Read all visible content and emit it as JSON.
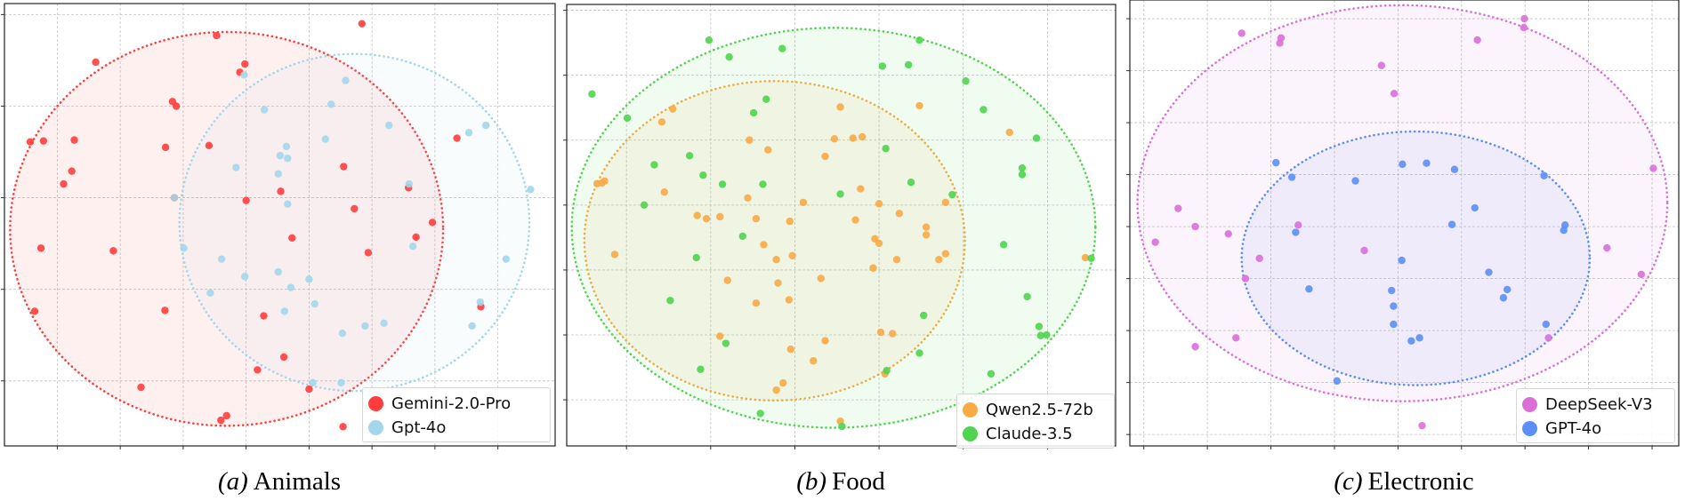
{
  "chart_data": [
    {
      "type": "scatter",
      "caption_label": "(a)",
      "caption_title": "Animals",
      "xlim": [
        -0.84,
        7.91
      ],
      "ylim": [
        -0.71,
        4.12
      ],
      "xticks": [
        0,
        1,
        2,
        3,
        4,
        5,
        6,
        7
      ],
      "yticks": [
        0,
        1,
        2,
        3,
        4
      ],
      "tick_labels_shown": false,
      "grid": true,
      "legend_position": "lower-right",
      "series": [
        {
          "name": "Gemini-2.0-Pro",
          "color": "#ff3d3d",
          "ellipse": {
            "cx": 2.69,
            "cy": 1.66,
            "rx": 3.44,
            "ry": 2.15
          },
          "points": [
            [
              4.84,
              3.9
            ],
            [
              2.53,
              3.77
            ],
            [
              0.61,
              3.48
            ],
            [
              2.98,
              3.46
            ],
            [
              2.9,
              3.37
            ],
            [
              1.83,
              3.05
            ],
            [
              1.89,
              3.0
            ],
            [
              -0.43,
              2.61
            ],
            [
              -0.22,
              2.62
            ],
            [
              0.27,
              2.63
            ],
            [
              1.72,
              2.55
            ],
            [
              2.41,
              2.57
            ],
            [
              6.35,
              2.65
            ],
            [
              0.23,
              2.29
            ],
            [
              0.1,
              2.15
            ],
            [
              4.55,
              2.34
            ],
            [
              5.58,
              2.11
            ],
            [
              3.55,
              2.07
            ],
            [
              3.0,
              1.97
            ],
            [
              4.72,
              1.88
            ],
            [
              5.96,
              1.73
            ],
            [
              3.73,
              1.56
            ],
            [
              5.7,
              1.57
            ],
            [
              -0.26,
              1.45
            ],
            [
              0.89,
              1.42
            ],
            [
              4.94,
              1.4
            ],
            [
              -0.36,
              0.76
            ],
            [
              1.71,
              0.77
            ],
            [
              3.28,
              0.71
            ],
            [
              6.73,
              0.81
            ],
            [
              3.6,
              0.26
            ],
            [
              3.18,
              0.12
            ],
            [
              1.33,
              -0.07
            ],
            [
              4.0,
              -0.09
            ],
            [
              2.69,
              -0.38
            ],
            [
              2.6,
              -0.43
            ],
            [
              4.54,
              -0.5
            ],
            [
              1.86,
              2.0
            ]
          ]
        },
        {
          "name": "Gpt-4o",
          "color": "#a3d6ea",
          "ellipse": {
            "cx": 4.72,
            "cy": 1.73,
            "rx": 2.78,
            "ry": 1.84
          },
          "points": [
            [
              2.97,
              3.34
            ],
            [
              4.58,
              3.28
            ],
            [
              4.35,
              3.02
            ],
            [
              3.29,
              2.96
            ],
            [
              5.27,
              2.79
            ],
            [
              6.54,
              2.71
            ],
            [
              6.81,
              2.79
            ],
            [
              4.26,
              2.64
            ],
            [
              3.64,
              2.56
            ],
            [
              3.54,
              2.46
            ],
            [
              3.66,
              2.43
            ],
            [
              2.84,
              2.33
            ],
            [
              3.51,
              2.26
            ],
            [
              5.59,
              2.15
            ],
            [
              7.52,
              2.09
            ],
            [
              3.66,
              1.93
            ],
            [
              2.01,
              1.45
            ],
            [
              5.65,
              1.47
            ],
            [
              2.61,
              1.33
            ],
            [
              7.13,
              1.33
            ],
            [
              2.98,
              1.14
            ],
            [
              3.51,
              1.19
            ],
            [
              4.0,
              1.11
            ],
            [
              3.71,
              1.02
            ],
            [
              2.43,
              0.96
            ],
            [
              4.09,
              0.84
            ],
            [
              3.61,
              0.76
            ],
            [
              6.72,
              0.86
            ],
            [
              6.59,
              0.6
            ],
            [
              4.89,
              0.6
            ],
            [
              5.19,
              0.63
            ],
            [
              4.53,
              0.52
            ],
            [
              4.06,
              -0.02
            ],
            [
              4.51,
              -0.02
            ],
            [
              1.86,
              2.0
            ]
          ]
        }
      ]
    },
    {
      "type": "scatter",
      "caption_label": "(b)",
      "caption_title": "Food",
      "xlim": [
        -0.71,
        5.81
      ],
      "ylim": [
        -0.71,
        6.09
      ],
      "xticks": [
        0,
        1,
        2,
        3,
        4,
        5
      ],
      "yticks": [
        0,
        1,
        2,
        3,
        4,
        5,
        6
      ],
      "tick_labels_shown": false,
      "grid": true,
      "legend_position": "lower-right",
      "series": [
        {
          "name": "Qwen2.5-72b",
          "color": "#f8aa45",
          "ellipse": {
            "cx": 1.76,
            "cy": 2.45,
            "rx": 2.26,
            "ry": 2.46
          },
          "points": [
            [
              2.54,
              4.51
            ],
            [
              3.48,
              4.53
            ],
            [
              0.55,
              4.48
            ],
            [
              0.42,
              4.28
            ],
            [
              4.55,
              4.12
            ],
            [
              1.46,
              4.0
            ],
            [
              2.47,
              4.02
            ],
            [
              2.69,
              4.03
            ],
            [
              2.8,
              4.05
            ],
            [
              1.68,
              3.85
            ],
            [
              2.36,
              3.75
            ],
            [
              -0.35,
              3.33
            ],
            [
              -0.29,
              3.34
            ],
            [
              -0.26,
              3.37
            ],
            [
              0.45,
              3.2
            ],
            [
              1.44,
              3.11
            ],
            [
              2.78,
              3.25
            ],
            [
              2.1,
              3.04
            ],
            [
              3.0,
              3.02
            ],
            [
              3.79,
              3.04
            ],
            [
              0.84,
              2.84
            ],
            [
              0.95,
              2.79
            ],
            [
              1.11,
              2.82
            ],
            [
              1.54,
              2.79
            ],
            [
              1.94,
              2.75
            ],
            [
              2.72,
              2.77
            ],
            [
              3.24,
              2.87
            ],
            [
              3.56,
              2.66
            ],
            [
              3.56,
              2.54
            ],
            [
              2.95,
              2.48
            ],
            [
              3.0,
              2.41
            ],
            [
              1.63,
              2.39
            ],
            [
              -0.14,
              2.24
            ],
            [
              1.78,
              2.16
            ],
            [
              1.97,
              2.22
            ],
            [
              3.21,
              2.16
            ],
            [
              3.71,
              2.16
            ],
            [
              3.79,
              2.25
            ],
            [
              2.93,
              2.03
            ],
            [
              5.45,
              2.19
            ],
            [
              1.2,
              1.84
            ],
            [
              1.8,
              1.8
            ],
            [
              2.31,
              1.87
            ],
            [
              1.54,
              1.49
            ],
            [
              1.93,
              1.54
            ],
            [
              1.11,
              0.98
            ],
            [
              3.02,
              1.04
            ],
            [
              3.16,
              1.02
            ],
            [
              2.36,
              0.91
            ],
            [
              1.95,
              0.78
            ],
            [
              2.22,
              0.6
            ],
            [
              3.07,
              0.4
            ],
            [
              1.86,
              0.26
            ],
            [
              1.78,
              0.15
            ],
            [
              2.54,
              -0.33
            ]
          ]
        },
        {
          "name": "Claude-3.5",
          "color": "#4ed44e",
          "ellipse": {
            "cx": 2.46,
            "cy": 2.65,
            "rx": 3.11,
            "ry": 3.08
          },
          "points": [
            [
              0.98,
              5.54
            ],
            [
              1.85,
              5.41
            ],
            [
              1.22,
              5.28
            ],
            [
              3.48,
              5.54
            ],
            [
              3.04,
              5.14
            ],
            [
              3.35,
              5.16
            ],
            [
              -0.41,
              4.71
            ],
            [
              4.03,
              4.91
            ],
            [
              1.66,
              4.63
            ],
            [
              0.01,
              4.34
            ],
            [
              1.51,
              4.42
            ],
            [
              4.24,
              4.47
            ],
            [
              4.87,
              4.03
            ],
            [
              3.08,
              3.87
            ],
            [
              0.75,
              3.76
            ],
            [
              0.33,
              3.62
            ],
            [
              0.91,
              3.46
            ],
            [
              1.14,
              3.32
            ],
            [
              1.62,
              3.32
            ],
            [
              4.7,
              3.57
            ],
            [
              4.7,
              3.47
            ],
            [
              3.38,
              3.35
            ],
            [
              2.54,
              3.17
            ],
            [
              3.87,
              3.16
            ],
            [
              0.21,
              3.0
            ],
            [
              1.38,
              2.52
            ],
            [
              4.48,
              2.39
            ],
            [
              0.83,
              2.19
            ],
            [
              5.52,
              2.18
            ],
            [
              0.52,
              1.53
            ],
            [
              4.76,
              1.59
            ],
            [
              3.53,
              1.3
            ],
            [
              4.9,
              1.13
            ],
            [
              4.92,
              0.99
            ],
            [
              4.99,
              1.0
            ],
            [
              1.18,
              0.87
            ],
            [
              3.48,
              0.72
            ],
            [
              0.88,
              0.47
            ],
            [
              3.09,
              0.45
            ],
            [
              4.33,
              0.4
            ],
            [
              1.59,
              -0.21
            ],
            [
              2.56,
              -0.41
            ]
          ]
        }
      ]
    },
    {
      "type": "scatter",
      "caption_label": "(c)",
      "caption_title": "Electronic",
      "xlim": [
        -0.22,
        8.42
      ],
      "ylim": [
        -0.22,
        8.36
      ],
      "xticks": [
        0,
        1,
        2,
        3,
        4,
        5,
        6,
        7,
        8
      ],
      "yticks": [
        0,
        1,
        2,
        3,
        4,
        5,
        6,
        7,
        8
      ],
      "tick_labels_shown": false,
      "grid": true,
      "legend_position": "lower-right",
      "series": [
        {
          "name": "DeepSeek-V3",
          "color": "#da6fda",
          "ellipse": {
            "cx": 4.07,
            "cy": 4.45,
            "rx": 4.17,
            "ry": 3.81
          },
          "points": [
            [
              1.54,
              7.72
            ],
            [
              2.16,
              7.63
            ],
            [
              2.14,
              7.53
            ],
            [
              5.99,
              8.0
            ],
            [
              5.98,
              7.83
            ],
            [
              5.25,
              7.59
            ],
            [
              3.74,
              7.1
            ],
            [
              3.94,
              6.56
            ],
            [
              8.02,
              5.12
            ],
            [
              0.54,
              4.35
            ],
            [
              0.81,
              4.0
            ],
            [
              0.18,
              3.7
            ],
            [
              1.33,
              3.86
            ],
            [
              2.43,
              4.03
            ],
            [
              1.82,
              3.39
            ],
            [
              3.47,
              3.54
            ],
            [
              1.6,
              3.0
            ],
            [
              7.29,
              3.59
            ],
            [
              7.83,
              3.08
            ],
            [
              1.45,
              1.86
            ],
            [
              0.81,
              1.69
            ],
            [
              6.37,
              1.86
            ],
            [
              4.38,
              0.17
            ]
          ]
        },
        {
          "name": "GPT-4o",
          "color": "#5b8ff5",
          "ellipse": {
            "cx": 4.28,
            "cy": 3.39,
            "rx": 2.74,
            "ry": 2.44
          },
          "points": [
            [
              2.08,
              5.23
            ],
            [
              4.07,
              5.2
            ],
            [
              4.45,
              5.22
            ],
            [
              4.89,
              5.1
            ],
            [
              2.33,
              4.95
            ],
            [
              3.33,
              4.88
            ],
            [
              6.3,
              4.98
            ],
            [
              5.21,
              4.36
            ],
            [
              4.85,
              4.04
            ],
            [
              6.63,
              4.03
            ],
            [
              6.61,
              3.93
            ],
            [
              2.39,
              3.89
            ],
            [
              4.06,
              3.35
            ],
            [
              5.43,
              3.12
            ],
            [
              2.6,
              2.8
            ],
            [
              3.9,
              2.77
            ],
            [
              5.72,
              2.79
            ],
            [
              5.66,
              2.63
            ],
            [
              3.93,
              2.47
            ],
            [
              3.93,
              2.12
            ],
            [
              6.33,
              2.12
            ],
            [
              4.34,
              1.86
            ],
            [
              4.21,
              1.8
            ],
            [
              3.04,
              1.03
            ]
          ]
        }
      ]
    }
  ]
}
